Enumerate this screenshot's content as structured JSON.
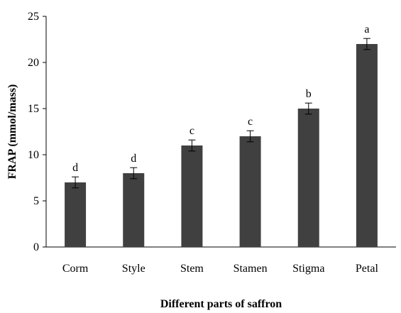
{
  "chart_data": {
    "type": "bar",
    "title": "",
    "xlabel": "Different parts of saffron",
    "ylabel": "FRAP (mmol/mass)",
    "ylim": [
      0,
      25
    ],
    "yticks": [
      0,
      5,
      10,
      15,
      20,
      25
    ],
    "grid": false,
    "legend": "none",
    "categories": [
      "Corm",
      "Style",
      "Stem",
      "Stamen",
      "Stigma",
      "Petal"
    ],
    "values": [
      7,
      8,
      11,
      12,
      15,
      22
    ],
    "errors": [
      0.6,
      0.6,
      0.6,
      0.6,
      0.6,
      0.6
    ],
    "significance": [
      "d",
      "d",
      "c",
      "c",
      "b",
      "a"
    ],
    "bar_color": "#404040",
    "axis_color": "#000000"
  }
}
